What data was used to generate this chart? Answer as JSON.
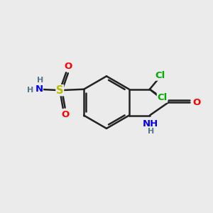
{
  "bg_color": "#ebebeb",
  "bond_color": "#222222",
  "bond_width": 1.8,
  "colors": {
    "N": "#0000ee",
    "O": "#ff0000",
    "S": "#bbbb00",
    "Cl": "#00aa00",
    "H": "#557788",
    "C": "#222222"
  },
  "font_size": 9.5
}
